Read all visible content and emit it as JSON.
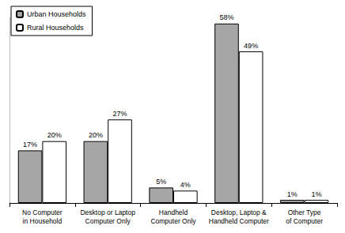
{
  "chart_data": {
    "type": "bar",
    "categories": [
      "No Computer\nin Household",
      "Desktop or Laptop\nComputer Only",
      "Handheld\nComputer Only",
      "Desktop, Laptop &\nHandheld Computer",
      "Other Type\nof Computer"
    ],
    "series": [
      {
        "name": "Urban Households",
        "color": "#a6a6a6",
        "values": [
          17,
          20,
          5,
          58,
          1
        ],
        "value_labels": [
          "17%",
          "20%",
          "5%",
          "58%",
          "1%"
        ]
      },
      {
        "name": "Rural Households",
        "color": "#ffffff",
        "values": [
          20,
          27,
          4,
          49,
          1
        ],
        "value_labels": [
          "20%",
          "27%",
          "4%",
          "49%",
          "1%"
        ]
      }
    ],
    "ylim": [
      0,
      60
    ],
    "yticks": [
      0,
      60
    ],
    "grid": false,
    "legend": "top-left",
    "data_labels": true,
    "tick_labels": "x"
  }
}
